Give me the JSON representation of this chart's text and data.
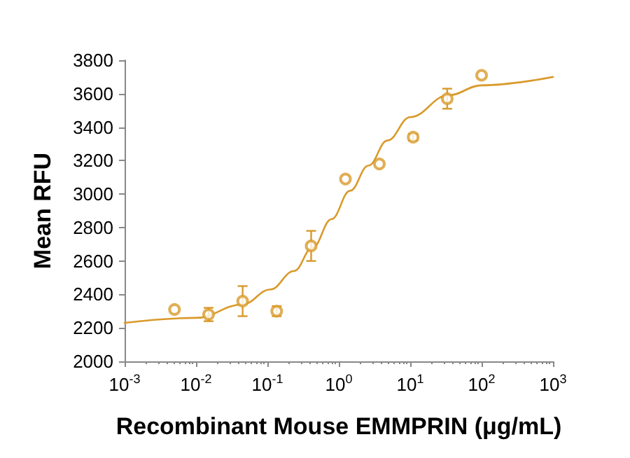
{
  "chart_data": {
    "type": "scatter",
    "xlabel": "Recombinant Mouse EMMPRIN (μg/mL)",
    "ylabel": "Mean RFU",
    "log": "x",
    "grid": false,
    "xlim": [
      0.001,
      1000
    ],
    "xticks": [
      {
        "value": 0.001,
        "label": "10$^{-3}$"
      },
      {
        "value": 0.01,
        "label": "10$^{-2}$"
      },
      {
        "value": 0.1,
        "label": "10$^{-1}$"
      },
      {
        "value": 1,
        "label": "10$^{0}$"
      },
      {
        "value": 10,
        "label": "10$^{1}$"
      },
      {
        "value": 100,
        "label": "10$^{2}$"
      },
      {
        "value": 1000,
        "label": "10$^{3}$"
      }
    ],
    "ylim": [
      2000,
      3800
    ],
    "yticks": [
      2000,
      2200,
      2400,
      2600,
      2800,
      3000,
      3200,
      3400,
      3600,
      3800
    ],
    "series": [
      {
        "type": "scatter",
        "marker": "circle",
        "color": "#d99a2b",
        "x": [
          0.005,
          0.015,
          0.045,
          0.135,
          0.41,
          1.24,
          3.7,
          11,
          33,
          100
        ],
        "values": [
          2310,
          2280,
          2360,
          2300,
          2690,
          3090,
          3180,
          3340,
          3570,
          3710
        ],
        "errors": [
          null,
          40,
          90,
          30,
          90,
          null,
          null,
          20,
          60,
          null
        ]
      },
      {
        "type": "line",
        "marker": "none",
        "line_style": "solid",
        "color": "#d99a2b",
        "x": [
          0.001,
          0.01,
          0.045,
          0.11,
          0.236,
          0.43,
          0.79,
          1.44,
          2.6,
          4.8,
          10,
          34,
          100,
          1000
        ],
        "values": [
          2230,
          2260,
          2340,
          2430,
          2540,
          2680,
          2850,
          3020,
          3170,
          3320,
          3460,
          3590,
          3650,
          3700
        ]
      }
    ]
  }
}
